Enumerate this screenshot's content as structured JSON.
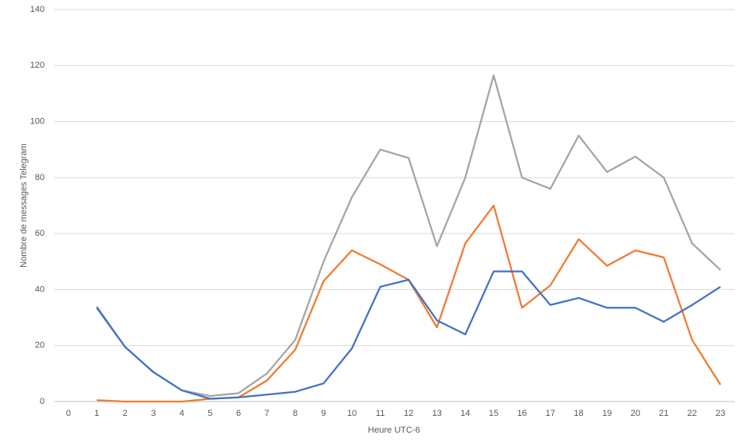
{
  "chart_data": {
    "type": "line",
    "x_label": "Heure UTC-6",
    "y_label": "Nombre de messages Telegram",
    "categories": [
      "0",
      "1",
      "2",
      "3",
      "4",
      "5",
      "6",
      "7",
      "8",
      "9",
      "10",
      "11",
      "12",
      "13",
      "14",
      "15",
      "16",
      "17",
      "18",
      "19",
      "20",
      "21",
      "22",
      "23"
    ],
    "series": [
      {
        "color": "#a5a5a5",
        "values": [
          null,
          34,
          19.5,
          10.5,
          4,
          2,
          3,
          10,
          22,
          50,
          73,
          90,
          87,
          55.5,
          80,
          116.5,
          80,
          76,
          95,
          82,
          87.5,
          80,
          56.5,
          47
        ]
      },
      {
        "color": "#ed7d31",
        "values": [
          null,
          0.5,
          0,
          0,
          0,
          1,
          1.5,
          7.5,
          18.5,
          43,
          54,
          49,
          43.5,
          26.5,
          56.5,
          70,
          33.5,
          41.5,
          58,
          48.5,
          54,
          51.5,
          22,
          6
        ]
      },
      {
        "color": "#4472c4",
        "values": [
          null,
          33.5,
          19.5,
          10.5,
          4,
          1,
          1.5,
          2.5,
          3.5,
          6.5,
          19,
          41,
          43.5,
          29,
          24,
          46.5,
          46.5,
          34.5,
          37,
          33.5,
          33.5,
          28.5,
          34.5,
          41
        ]
      }
    ],
    "ylim": [
      0,
      140
    ],
    "yticks": [
      0,
      20,
      40,
      60,
      80,
      100,
      120,
      140
    ],
    "grid": true
  }
}
